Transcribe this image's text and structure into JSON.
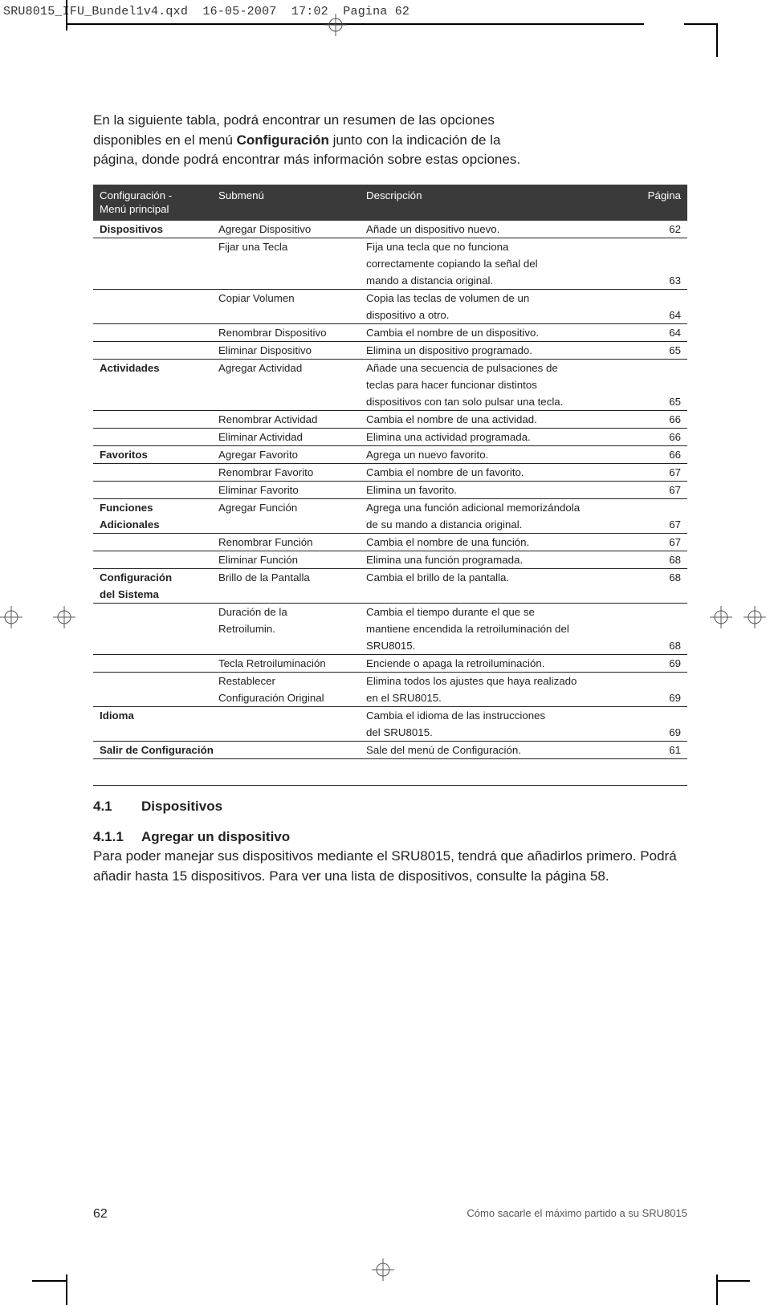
{
  "header": {
    "filename": "SRU8015_IFU_Bundel1v4.qxd",
    "date": "16-05-2007",
    "time": "17:02",
    "pageword": "Pagina 62"
  },
  "intro": {
    "line1": "En la siguiente tabla, podrá encontrar un resumen de las opciones",
    "line2a": "disponibles en el menú ",
    "line2b": "Configuración",
    "line2c": " junto con la indicación de la",
    "line3": "página, donde podrá encontrar más información sobre estas opciones."
  },
  "thead": {
    "c1a": "Configuración -",
    "c1b": "Menú principal",
    "c2": "Submenú",
    "c3": "Descripción",
    "c4": "Página"
  },
  "rows": [
    {
      "main": "Dispositivos",
      "sub": "Agregar Dispositivo",
      "desc": "Añade un dispositivo nuevo.",
      "pg": "62",
      "split": true
    },
    {
      "main": "",
      "sub": "Fijar una Tecla",
      "desc": "Fija una tecla que no funciona",
      "pg": ""
    },
    {
      "main": "",
      "sub": "",
      "desc": "correctamente copiando la señal del",
      "pg": ""
    },
    {
      "main": "",
      "sub": "",
      "desc": "mando a distancia original.",
      "pg": "63",
      "split": true
    },
    {
      "main": "",
      "sub": "Copiar Volumen",
      "desc": "Copia las teclas de volumen de un",
      "pg": ""
    },
    {
      "main": "",
      "sub": "",
      "desc": "dispositivo a otro.",
      "pg": "64",
      "split": true
    },
    {
      "main": "",
      "sub": "Renombrar Dispositivo",
      "desc": "Cambia el nombre de un dispositivo.",
      "pg": "64",
      "split": true
    },
    {
      "main": "",
      "sub": "Eliminar Dispositivo",
      "desc": "Elimina un dispositivo programado.",
      "pg": "65",
      "split": true
    },
    {
      "main": "Actividades",
      "sub": "Agregar Actividad",
      "desc": "Añade una secuencia de pulsaciones de",
      "pg": ""
    },
    {
      "main": "",
      "sub": "",
      "desc": "teclas para hacer funcionar distintos",
      "pg": ""
    },
    {
      "main": "",
      "sub": "",
      "desc": "dispositivos con tan solo pulsar una tecla.",
      "pg": "65",
      "split": true
    },
    {
      "main": "",
      "sub": "Renombrar Actividad",
      "desc": "Cambia el nombre de una actividad.",
      "pg": "66",
      "split": true
    },
    {
      "main": "",
      "sub": "Eliminar Actividad",
      "desc": "Elimina una actividad programada.",
      "pg": "66",
      "split": true
    },
    {
      "main": "Favoritos",
      "sub": "Agregar Favorito",
      "desc": "Agrega un nuevo favorito.",
      "pg": "66",
      "split": true
    },
    {
      "main": "",
      "sub": "Renombrar Favorito",
      "desc": "Cambia el nombre de un favorito.",
      "pg": "67",
      "split": true
    },
    {
      "main": "",
      "sub": "Eliminar Favorito",
      "desc": "Elimina un favorito.",
      "pg": "67",
      "split": true
    },
    {
      "main": "Funciones",
      "sub": "Agregar Función",
      "desc": "Agrega una función adicional memorizándola",
      "pg": ""
    },
    {
      "main": "Adicionales",
      "sub": "",
      "desc": "de su mando a distancia original.",
      "pg": "67",
      "split": true
    },
    {
      "main": "",
      "sub": "Renombrar Función",
      "desc": "Cambia el nombre de una función.",
      "pg": "67",
      "split": true
    },
    {
      "main": "",
      "sub": "Eliminar Función",
      "desc": "Elimina una función programada.",
      "pg": "68",
      "split": true
    },
    {
      "main": "Configuración",
      "sub": "Brillo de la Pantalla",
      "desc": "Cambia el brillo de la pantalla.",
      "pg": "68"
    },
    {
      "main": "del Sistema",
      "sub": "",
      "desc": "",
      "pg": "",
      "split": true
    },
    {
      "main": "",
      "sub": "Duración de la",
      "desc": "Cambia el tiempo durante el que se",
      "pg": ""
    },
    {
      "main": "",
      "sub": "Retroilumin.",
      "desc": "mantiene encendida la retroiluminación del",
      "pg": ""
    },
    {
      "main": "",
      "sub": "",
      "desc": "SRU8015.",
      "pg": "68",
      "split": true
    },
    {
      "main": "",
      "sub": "Tecla Retroiluminación",
      "desc": "Enciende o apaga la retroiluminación.",
      "pg": "69",
      "split": true
    },
    {
      "main": "",
      "sub": "Restablecer",
      "desc": "Elimina todos los ajustes que haya realizado",
      "pg": ""
    },
    {
      "main": "",
      "sub": "Configuración Original",
      "desc": "en el SRU8015.",
      "pg": "69",
      "split": true
    },
    {
      "main": "Idioma",
      "sub": "",
      "desc": "Cambia el idioma de las instrucciones",
      "pg": ""
    },
    {
      "main": "",
      "sub": "",
      "desc": "del SRU8015.",
      "pg": "69",
      "split": true
    },
    {
      "main": "Salir de Configuración",
      "sub": "",
      "desc": "Sale del menú de Configuración.",
      "pg": "61",
      "split": true,
      "span2": true
    }
  ],
  "section": {
    "num": "4.1",
    "title": "Dispositivos",
    "subnum": "4.1.1",
    "subtitle": "Agregar un dispositivo",
    "body": "Para poder manejar sus dispositivos mediante el SRU8015, tendrá que añadirlos primero. Podrá añadir hasta 15 dispositivos. Para ver una lista de dispositivos, consulte la página 58."
  },
  "footer": {
    "pagenum": "62",
    "text": "Cómo sacarle el máximo partido a su SRU8015"
  }
}
